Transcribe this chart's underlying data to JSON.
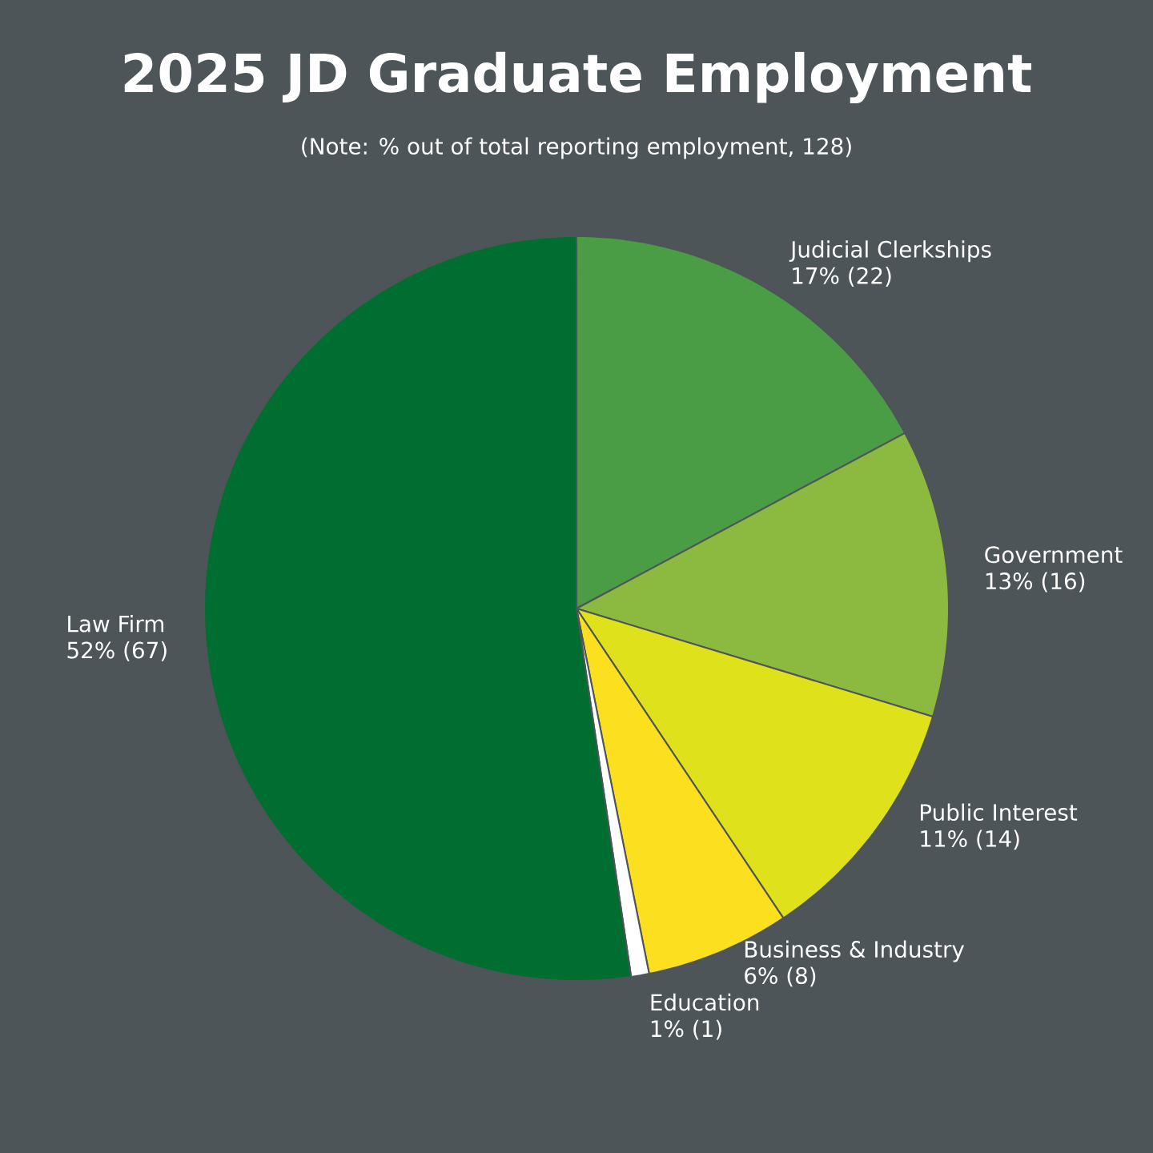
{
  "chart_data": {
    "type": "pie",
    "title": "2025 JD Graduate Employment",
    "subtitle": "(Note: % out of total reporting employment, 128)",
    "categories": [
      "Judicial Clerkships",
      "Government",
      "Public Interest",
      "Business & Industry",
      "Education",
      "Law Firm"
    ],
    "values": [
      22,
      16,
      14,
      8,
      1,
      67
    ],
    "colors": [
      "#4a9c45",
      "#8cba40",
      "#dfe21a",
      "#fce01f",
      "#ffffff",
      "#006e30"
    ],
    "value_labels": [
      "17% (22)",
      "13% (16)",
      "11% (14)",
      "6% (8)",
      "1% (1)",
      "52% (67)"
    ]
  }
}
